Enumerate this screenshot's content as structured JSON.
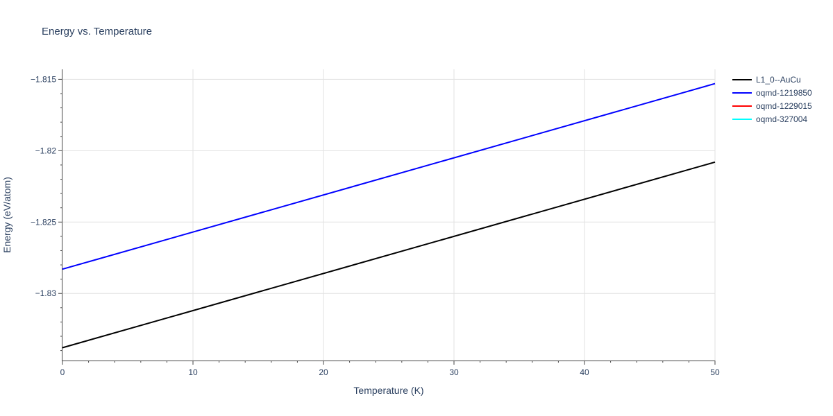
{
  "chart_data": {
    "type": "line",
    "title": "Energy vs. Temperature",
    "xlabel": "Temperature (K)",
    "ylabel": "Energy (eV/atom)",
    "xlim": [
      0,
      50
    ],
    "ylim": [
      -1.8347,
      -1.8143
    ],
    "x_ticks": [
      0,
      10,
      20,
      30,
      40,
      50
    ],
    "x_tick_labels": [
      "0",
      "10",
      "20",
      "30",
      "40",
      "50"
    ],
    "y_ticks": [
      -1.83,
      -1.825,
      -1.82,
      -1.815
    ],
    "y_tick_labels": [
      "−1.83",
      "−1.825",
      "−1.82",
      "−1.815"
    ],
    "grid": true,
    "legend_position": "top-right outside",
    "series": [
      {
        "name": "L1_0--AuCu",
        "color": "#000000",
        "x": [
          0,
          50
        ],
        "y": [
          -1.8338,
          -1.8208
        ]
      },
      {
        "name": "oqmd-1219850",
        "color": "#0000ff",
        "x": [
          0,
          50
        ],
        "y": [
          -1.8283,
          -1.8153
        ]
      },
      {
        "name": "oqmd-1229015",
        "color": "#ff0000",
        "x": [],
        "y": []
      },
      {
        "name": "oqmd-327004",
        "color": "#00ffff",
        "x": [],
        "y": []
      }
    ]
  }
}
